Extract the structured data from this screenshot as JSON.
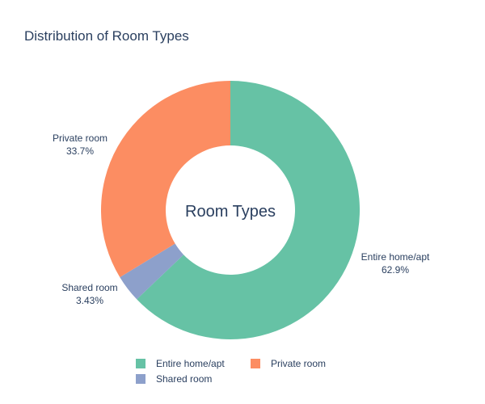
{
  "chart_data": {
    "type": "pie",
    "title": "Distribution of Room Types",
    "center_label": "Room Types",
    "hole": true,
    "slices": [
      {
        "label": "Entire home/apt",
        "value": 62.9,
        "percent_label": "62.9%",
        "color": "#66c2a5"
      },
      {
        "label": "Shared room",
        "value": 3.43,
        "percent_label": "3.43%",
        "color": "#8da0cb"
      },
      {
        "label": "Private room",
        "value": 33.7,
        "percent_label": "33.7%",
        "color": "#fc8d62"
      }
    ],
    "legend": {
      "placement": "bottom",
      "items": [
        {
          "label": "Entire home/apt",
          "color": "#66c2a5"
        },
        {
          "label": "Private room",
          "color": "#fc8d62"
        },
        {
          "label": "Shared room",
          "color": "#8da0cb"
        }
      ]
    }
  }
}
